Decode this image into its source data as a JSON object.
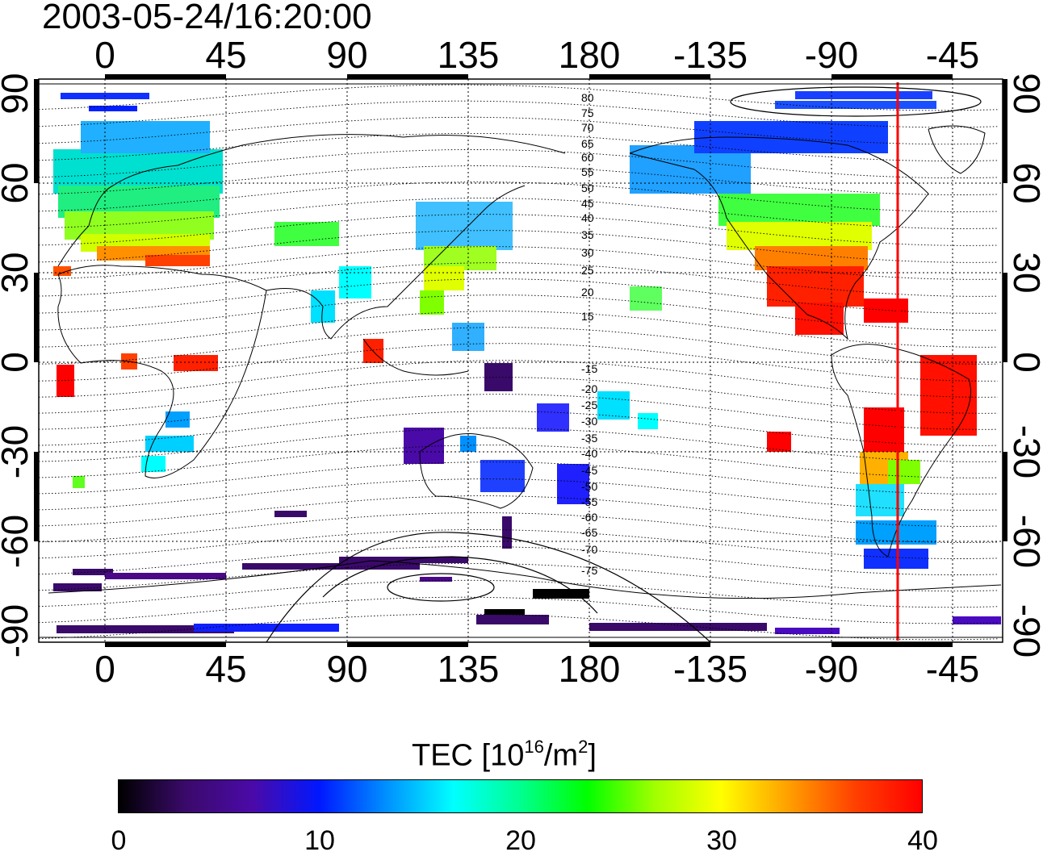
{
  "timestamp": "2003-05-24/16:20:00",
  "map": {
    "x_tick_labels": [
      "0",
      "45",
      "90",
      "135",
      "180",
      "-135",
      "-90",
      "-45"
    ],
    "y_tick_labels": [
      "90",
      "60",
      "30",
      "0",
      "-30",
      "-60",
      "-90"
    ],
    "contour_labels": [
      "80",
      "75",
      "70",
      "65",
      "60",
      "55",
      "50",
      "45",
      "40",
      "35",
      "30",
      "25",
      "20",
      "15",
      "-15",
      "-20",
      "-25",
      "-30",
      "-35",
      "-40",
      "-45",
      "-50",
      "-55",
      "-60",
      "-65",
      "-70",
      "-75"
    ],
    "terminator_line_color": "#ff0000",
    "terminator_longitude": -72
  },
  "colorbar": {
    "title_main": "TEC  [10",
    "title_sup1": "16",
    "title_mid": "/m",
    "title_sup2": "2",
    "title_end": "]",
    "tick_labels": [
      "0",
      "10",
      "20",
      "30",
      "40"
    ],
    "range": [
      0,
      40
    ],
    "colormap": [
      "#000000",
      "#3a0a6a",
      "#4a0aa8",
      "#0018ff",
      "#0090ff",
      "#00ffff",
      "#00ff90",
      "#00ff00",
      "#a0ff00",
      "#ffff00",
      "#ffa000",
      "#ff4000",
      "#ff0000"
    ]
  }
}
